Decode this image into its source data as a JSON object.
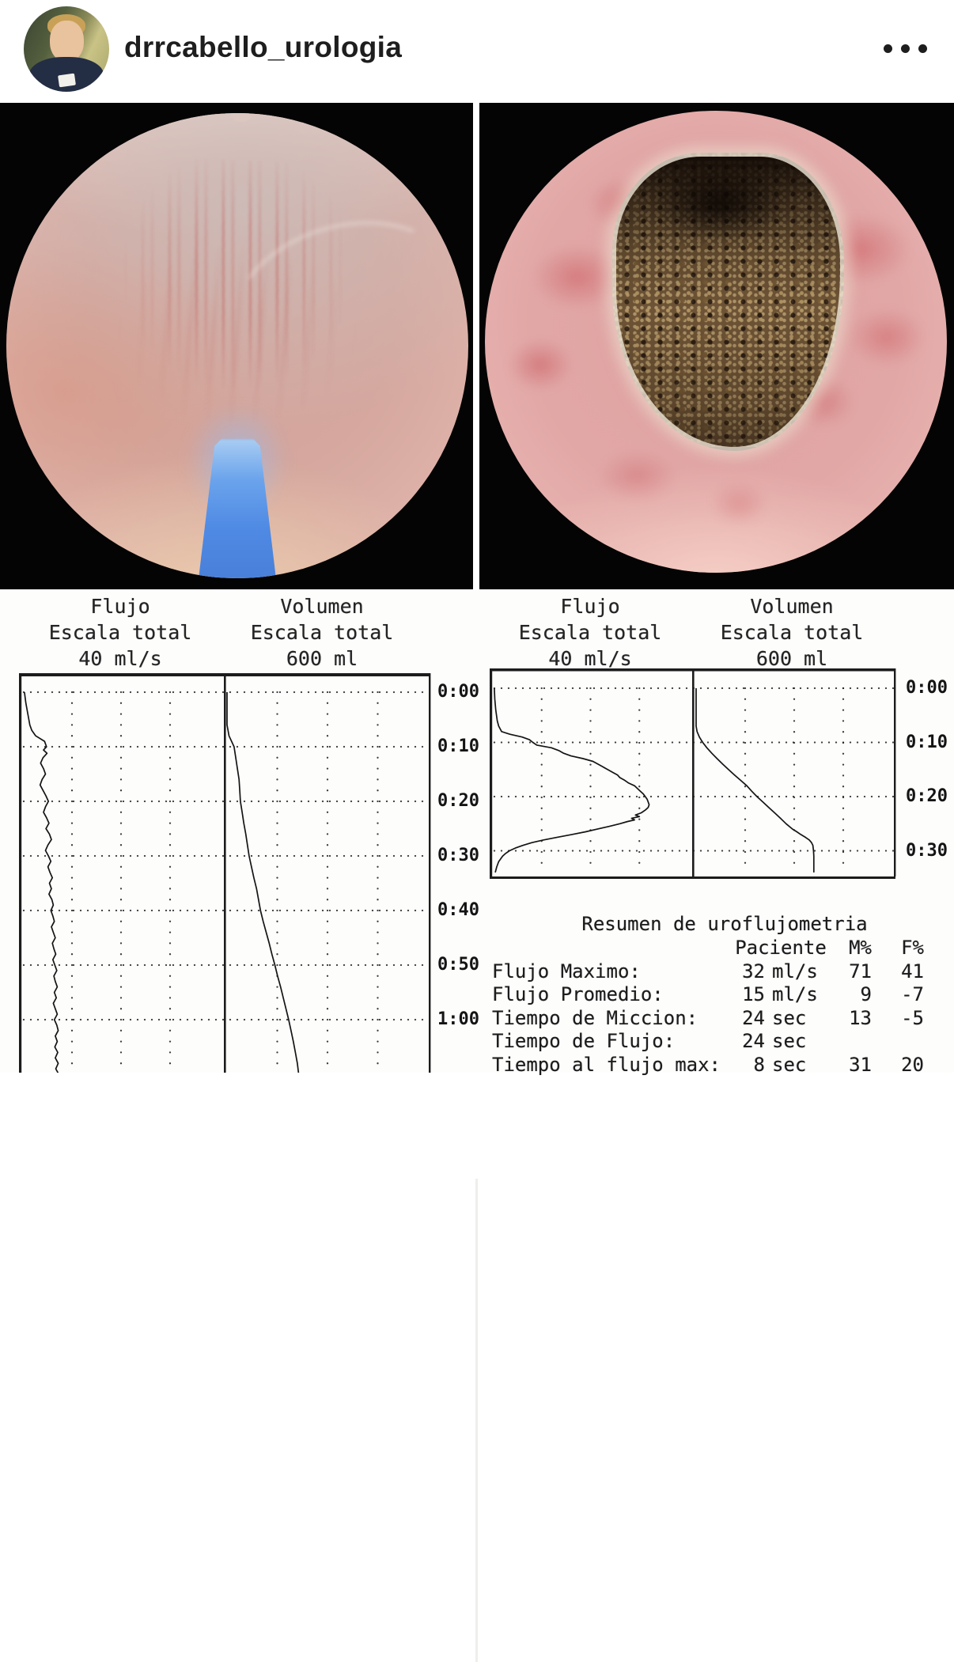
{
  "header": {
    "username": "drrcabello_urologia"
  },
  "chart_data": [
    {
      "type": "line",
      "orientation": "time-vertical",
      "time_axis": {
        "ticks": [
          "0:00",
          "0:10",
          "0:20",
          "0:30",
          "0:40",
          "0:50",
          "1:00"
        ],
        "interval_sec": 10
      },
      "panels": [
        {
          "label": "Flujo",
          "sublabel": "Escala total",
          "scale": "40 ml/s",
          "max": 40,
          "unit": "ml/s"
        },
        {
          "label": "Volumen",
          "sublabel": "Escala total",
          "scale": "600 ml",
          "max": 600,
          "unit": "ml"
        }
      ],
      "series": [
        {
          "name": "flujo",
          "panel": 0,
          "points": [
            [
              0,
              0.3
            ],
            [
              2,
              0.6
            ],
            [
              4,
              1
            ],
            [
              6,
              1.4
            ],
            [
              7,
              1.8
            ],
            [
              8,
              2.6
            ],
            [
              9,
              4.4
            ],
            [
              10,
              4.8
            ],
            [
              10.6,
              4.2
            ],
            [
              11.2,
              4.9
            ],
            [
              12,
              4.1
            ],
            [
              13,
              3.6
            ],
            [
              14,
              4.2
            ],
            [
              15,
              4.6
            ],
            [
              16,
              3.9
            ],
            [
              17,
              3.5
            ],
            [
              18,
              4.1
            ],
            [
              19,
              4.7
            ],
            [
              20,
              5.2
            ],
            [
              21,
              4.6
            ],
            [
              22,
              4.2
            ],
            [
              23,
              4.8
            ],
            [
              24,
              5.3
            ],
            [
              25,
              4.7
            ],
            [
              26,
              5.4
            ],
            [
              27,
              5.8
            ],
            [
              28,
              5.1
            ],
            [
              29,
              4.6
            ],
            [
              30,
              5.2
            ],
            [
              31,
              5.7
            ],
            [
              32,
              5.1
            ],
            [
              33,
              5.5
            ],
            [
              34,
              6
            ],
            [
              35,
              5.4
            ],
            [
              36,
              5.8
            ],
            [
              37,
              5.3
            ],
            [
              38,
              5.9
            ],
            [
              39,
              6.2
            ],
            [
              40,
              5.7
            ],
            [
              41,
              6.1
            ],
            [
              42,
              6.4
            ],
            [
              43,
              5.8
            ],
            [
              44,
              6.2
            ],
            [
              45,
              6.6
            ],
            [
              46,
              6
            ],
            [
              47,
              6.3
            ],
            [
              48,
              6.7
            ],
            [
              49,
              6.1
            ],
            [
              50,
              6.5
            ],
            [
              51,
              6.9
            ],
            [
              52,
              6.3
            ],
            [
              53,
              6.6
            ],
            [
              54,
              7
            ],
            [
              55,
              6.4
            ],
            [
              56,
              6.8
            ],
            [
              57,
              6.2
            ],
            [
              58,
              6.6
            ],
            [
              59,
              7
            ],
            [
              60,
              6.4
            ],
            [
              61,
              6.9
            ],
            [
              62,
              7.2
            ],
            [
              63,
              6.6
            ],
            [
              64,
              7
            ],
            [
              65,
              6.5
            ],
            [
              66,
              7.1
            ],
            [
              67,
              6.6
            ],
            [
              68,
              7.2
            ],
            [
              69,
              6.7
            ],
            [
              70,
              7.3
            ],
            [
              71,
              6.8
            ],
            [
              72,
              7.2
            ]
          ]
        },
        {
          "name": "volumen",
          "panel": 1,
          "points": [
            [
              0,
              0
            ],
            [
              6,
              0
            ],
            [
              8,
              6
            ],
            [
              10,
              21
            ],
            [
              12,
              26
            ],
            [
              14,
              31
            ],
            [
              16,
              36
            ],
            [
              18,
              38
            ],
            [
              20,
              40
            ],
            [
              22,
              45
            ],
            [
              24,
              50
            ],
            [
              26,
              56
            ],
            [
              28,
              61
            ],
            [
              30,
              66
            ],
            [
              32,
              73
            ],
            [
              34,
              80
            ],
            [
              36,
              88
            ],
            [
              38,
              94
            ],
            [
              40,
              100
            ],
            [
              42,
              108
            ],
            [
              44,
              117
            ],
            [
              46,
              126
            ],
            [
              48,
              134
            ],
            [
              50,
              143
            ],
            [
              52,
              151
            ],
            [
              54,
              160
            ],
            [
              56,
              168
            ],
            [
              58,
              176
            ],
            [
              60,
              184
            ],
            [
              62,
              191
            ],
            [
              64,
              198
            ],
            [
              66,
              204
            ],
            [
              68,
              210
            ],
            [
              70,
              214
            ],
            [
              72,
              218
            ]
          ]
        }
      ]
    },
    {
      "type": "line",
      "orientation": "time-vertical",
      "time_axis": {
        "ticks": [
          "0:00",
          "0:10",
          "0:20",
          "0:30"
        ],
        "interval_sec": 10
      },
      "panels": [
        {
          "label": "Flujo",
          "sublabel": "Escala total",
          "scale": "40 ml/s",
          "max": 40,
          "unit": "ml/s"
        },
        {
          "label": "Volumen",
          "sublabel": "Escala total",
          "scale": "600 ml",
          "max": 600,
          "unit": "ml"
        }
      ],
      "series": [
        {
          "name": "flujo",
          "panel": 0,
          "points": [
            [
              0,
              0.3
            ],
            [
              2,
              0.4
            ],
            [
              4,
              0.6
            ],
            [
              6,
              0.9
            ],
            [
              7,
              1.2
            ],
            [
              8,
              1.8
            ],
            [
              8.5,
              3.5
            ],
            [
              9,
              6
            ],
            [
              9.5,
              7.5
            ],
            [
              10,
              8.2
            ],
            [
              10.5,
              9
            ],
            [
              11,
              12
            ],
            [
              11.5,
              13.5
            ],
            [
              12,
              14.5
            ],
            [
              12.5,
              16
            ],
            [
              13,
              18.5
            ],
            [
              13.5,
              20.5
            ],
            [
              14,
              21.5
            ],
            [
              14.5,
              22.5
            ],
            [
              15,
              23.5
            ],
            [
              15.5,
              24.5
            ],
            [
              16,
              25.5
            ],
            [
              16.5,
              26
            ],
            [
              17,
              27
            ],
            [
              17.5,
              27.8
            ],
            [
              18,
              29
            ],
            [
              18.5,
              29.6
            ],
            [
              19,
              30.2
            ],
            [
              19.5,
              30.8
            ],
            [
              20,
              31.2
            ],
            [
              20.5,
              31.6
            ],
            [
              21,
              31.8
            ],
            [
              21.5,
              32
            ],
            [
              22,
              31.8
            ],
            [
              22.5,
              31.2
            ],
            [
              23,
              30.4
            ],
            [
              23.4,
              29.2
            ],
            [
              23.7,
              30
            ],
            [
              24,
              28.4
            ],
            [
              24.3,
              29
            ],
            [
              24.6,
              27.6
            ],
            [
              25,
              26
            ],
            [
              25.5,
              23.8
            ],
            [
              26,
              21.4
            ],
            [
              26.5,
              19
            ],
            [
              27,
              16.2
            ],
            [
              27.5,
              13.2
            ],
            [
              28,
              10.4
            ],
            [
              28.5,
              8
            ],
            [
              29,
              6.2
            ],
            [
              29.5,
              4.6
            ],
            [
              30,
              3.4
            ],
            [
              30.5,
              2.6
            ],
            [
              31,
              2
            ],
            [
              32,
              1.2
            ],
            [
              33,
              0.8
            ],
            [
              34,
              0.5
            ]
          ]
        },
        {
          "name": "volumen",
          "panel": 1,
          "points": [
            [
              0,
              0
            ],
            [
              7,
              0
            ],
            [
              8,
              3
            ],
            [
              9,
              10
            ],
            [
              10,
              20
            ],
            [
              11,
              33
            ],
            [
              12,
              48
            ],
            [
              13,
              64
            ],
            [
              14,
              81
            ],
            [
              15,
              99
            ],
            [
              16,
              117
            ],
            [
              17,
              136
            ],
            [
              18,
              155
            ],
            [
              19,
              170
            ],
            [
              20,
              186
            ],
            [
              21,
              204
            ],
            [
              22,
              222
            ],
            [
              23,
              240
            ],
            [
              24,
              258
            ],
            [
              25,
              275
            ],
            [
              26,
              295
            ],
            [
              26.5,
              308
            ],
            [
              27,
              320
            ],
            [
              27.5,
              334
            ],
            [
              28,
              346
            ],
            [
              28.5,
              353
            ],
            [
              29,
              357
            ],
            [
              30,
              359
            ],
            [
              31,
              360
            ],
            [
              34,
              360
            ]
          ]
        }
      ]
    }
  ],
  "summary": {
    "title": "Resumen de uroflujometria",
    "columns": [
      "Paciente",
      "M%",
      "F%"
    ],
    "rows": [
      {
        "label": "Flujo Maximo:",
        "num": "32",
        "unit": "ml/s",
        "m": "71",
        "f": "41"
      },
      {
        "label": "Flujo Promedio:",
        "num": "15",
        "unit": "ml/s",
        "m": "9",
        "f": "-7"
      },
      {
        "label": "Tiempo de Miccion:",
        "num": "24",
        "unit": "sec",
        "m": "13",
        "f": "-5"
      },
      {
        "label": "Tiempo de Flujo:",
        "num": "24",
        "unit": "sec",
        "m": "",
        "f": ""
      },
      {
        "label": "Tiempo al flujo max:",
        "num": "8",
        "unit": "sec",
        "m": "31",
        "f": "20"
      }
    ]
  }
}
